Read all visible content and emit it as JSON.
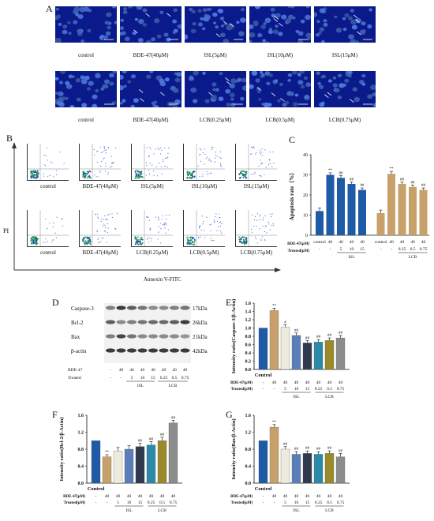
{
  "panels": {
    "A": "A",
    "B": "B",
    "C": "C",
    "D": "D",
    "E": "E",
    "F": "F",
    "G": "G"
  },
  "panel_a": {
    "row1": [
      "control",
      "BDE-47(40μM)",
      "ISL(5μM)",
      "ISL(10μM)",
      "ISL(15μM)"
    ],
    "row2": [
      "control",
      "BDE-47(40μM)",
      "LCB(0.25μM)",
      "LCB(0.5μM)",
      "LCB(0.75μM)"
    ]
  },
  "panel_b": {
    "row1": [
      "control",
      "BDE-47(40μM)",
      "ISL(5μM)",
      "ISL(10μM)",
      "ISL(15μM)"
    ],
    "row2": [
      "control",
      "BDE-47(40μM)",
      "LCB(0.25μM)",
      "LCB(0.5μM)",
      "LCB(0.75μM)"
    ],
    "ylabel": "PI",
    "xlabel": "Annexin V-FITC"
  },
  "panel_d": {
    "bands": [
      "Caspase-3",
      "Bcl-2",
      "Bax",
      "β-actin"
    ],
    "sizes": [
      "17kDa",
      "26kDa",
      "21kDa",
      "42kDa"
    ],
    "bde_label": "BDE-47",
    "treated_label": "Treated",
    "bde_values": [
      "-",
      "40",
      "40",
      "40",
      "40",
      "40",
      "40",
      "40"
    ],
    "treated_values": [
      "-",
      "-",
      "5",
      "10",
      "15",
      "0.25",
      "0.5",
      "0.75"
    ],
    "group_isl": "ISL",
    "group_lcb": "LCB"
  },
  "chart_data": [
    {
      "id": "C",
      "type": "bar",
      "ylabel": "Apoptosis rate（%）",
      "ylim": [
        0,
        40
      ],
      "yticks": [
        0,
        10,
        20,
        30,
        40
      ],
      "bde_label": "BDE-47(μM)",
      "treated_label": "Treated(μM)",
      "groups": [
        {
          "name": "ISL",
          "color": "#1f5aa6",
          "categories": [
            "control",
            "40",
            "40",
            "40",
            "40"
          ],
          "treated": [
            "-",
            "-",
            "5",
            "10",
            "15"
          ],
          "values": [
            12,
            30,
            28.5,
            25.5,
            22.5
          ],
          "errors": [
            1.5,
            1,
            1.2,
            1,
            1
          ],
          "marks": [
            "",
            "**",
            "##",
            "##",
            "##"
          ]
        },
        {
          "name": "LCB",
          "color": "#c8a06a",
          "categories": [
            "control",
            "40",
            "40",
            "40",
            "40"
          ],
          "treated": [
            "-",
            "-",
            "0.25",
            "0.5",
            "0.75"
          ],
          "values": [
            11,
            30.5,
            25.5,
            24,
            22.5
          ],
          "errors": [
            1.5,
            1.2,
            1,
            1,
            1
          ],
          "marks": [
            "",
            "**",
            "##",
            "##",
            "##"
          ]
        }
      ]
    },
    {
      "id": "E",
      "type": "bar",
      "ylabel": "Intensity ratio(Caspase-3/β-Actin)",
      "ylim": [
        0,
        1.6
      ],
      "yticks": [
        0.0,
        0.2,
        0.4,
        0.6,
        0.8,
        1.0,
        1.2,
        1.4,
        1.6
      ],
      "values": [
        1.0,
        1.42,
        1.02,
        0.82,
        0.64,
        0.66,
        0.7,
        0.76
      ],
      "errors": [
        0,
        0.06,
        0.06,
        0.06,
        0.06,
        0.06,
        0.06,
        0.06
      ],
      "marks": [
        "",
        "**",
        "#",
        "##",
        "##",
        "##",
        "##",
        "##"
      ],
      "colors": [
        "#1f5aa6",
        "#c8a06a",
        "#ecebdc",
        "#5a7fb8",
        "#2f3a4e",
        "#2a8aa8",
        "#9a8a2a",
        "#8c8c8c"
      ],
      "control_label": "Control",
      "bde_values": [
        "-",
        "40",
        "40",
        "40",
        "40",
        "40",
        "40",
        "40"
      ],
      "treated_values": [
        "-",
        "-",
        "5",
        "10",
        "15",
        "0.25",
        "0.5",
        "0.75"
      ],
      "group_isl": "ISL",
      "group_lcb": "LCB",
      "bde_label": "BDE-47(μM)",
      "treated_label": "Treated(μM)"
    },
    {
      "id": "F",
      "type": "bar",
      "ylabel": "Intensity ratio(Bcl-2/β-Actin)",
      "ylim": [
        0,
        1.6
      ],
      "yticks": [
        0.0,
        0.4,
        0.8,
        1.2,
        1.6
      ],
      "values": [
        1.0,
        0.62,
        0.76,
        0.8,
        0.86,
        0.9,
        1.0,
        1.42
      ],
      "errors": [
        0,
        0.05,
        0.08,
        0.08,
        0.08,
        0.08,
        0.08,
        0.06
      ],
      "marks": [
        "",
        "**",
        "",
        "",
        "##",
        "##",
        "##",
        "##"
      ],
      "colors": [
        "#1f5aa6",
        "#c8a06a",
        "#ecebdc",
        "#5a7fb8",
        "#2f3a4e",
        "#2a8aa8",
        "#9a8a2a",
        "#8c8c8c"
      ],
      "control_label": "Control",
      "bde_values": [
        "-",
        "40",
        "40",
        "40",
        "40",
        "40",
        "40",
        "40"
      ],
      "treated_values": [
        "-",
        "-",
        "5",
        "10",
        "15",
        "0.25",
        "0.5",
        "0.75"
      ],
      "group_isl": "ISL",
      "group_lcb": "LCB",
      "bde_label": "BDE-47(μM)",
      "treated_label": "Treated(μM)"
    },
    {
      "id": "G",
      "type": "bar",
      "ylabel": "Intensity ratio(Bax/β-Actin)",
      "ylim": [
        0,
        1.6
      ],
      "yticks": [
        0.0,
        0.4,
        0.8,
        1.2,
        1.6
      ],
      "values": [
        1.0,
        1.32,
        0.8,
        0.68,
        0.7,
        0.68,
        0.7,
        0.62
      ],
      "errors": [
        0,
        0.06,
        0.06,
        0.06,
        0.06,
        0.06,
        0.06,
        0.08
      ],
      "marks": [
        "",
        "**",
        "##",
        "##",
        "##",
        "##",
        "##",
        "##"
      ],
      "colors": [
        "#1f5aa6",
        "#c8a06a",
        "#ecebdc",
        "#5a7fb8",
        "#2f3a4e",
        "#2a8aa8",
        "#9a8a2a",
        "#8c8c8c"
      ],
      "control_label": "Control",
      "bde_values": [
        "-",
        "40",
        "40",
        "40",
        "40",
        "40",
        "40",
        "40"
      ],
      "treated_values": [
        "-",
        "-",
        "5",
        "10",
        "15",
        "0.25",
        "0.5",
        "0.75"
      ],
      "group_isl": "ISL",
      "group_lcb": "LCB",
      "bde_label": "BDE-47(μM)",
      "treated_label": "Treated(μM)"
    }
  ]
}
